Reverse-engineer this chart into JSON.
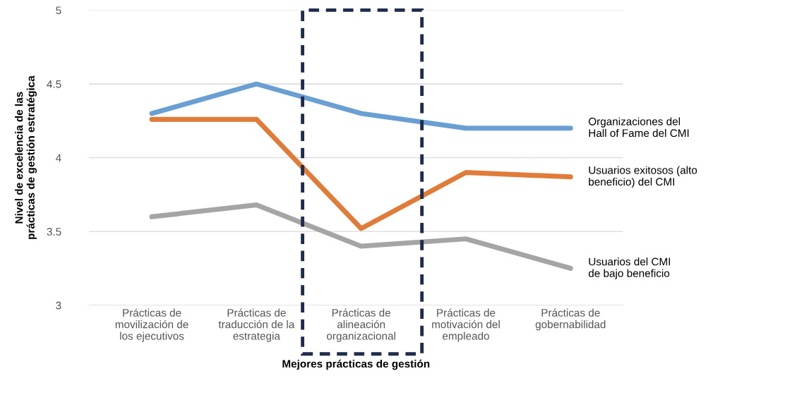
{
  "chart_data": {
    "type": "line",
    "categories": [
      "Prácticas de\nmovilización de\nlos ejecutivos",
      "Prácticas de\ntraducción de la\nestrategia",
      "Prácticas de\nalineación\norganizacional",
      "Prácticas de\nmotivación del\nempleado",
      "Prácticas de\ngobernabilidad"
    ],
    "series": [
      {
        "name": "Organizaciones del\nHall of Fame del CMI",
        "color": "#6a9fd4",
        "values": [
          4.3,
          4.5,
          4.3,
          4.2,
          4.2
        ]
      },
      {
        "name": "Usuarios exitosos (alto\nbeneficio) del CMI",
        "color": "#e07b39",
        "values": [
          4.26,
          4.26,
          3.52,
          3.9,
          3.87
        ]
      },
      {
        "name": "Usuarios del CMI\nde bajo beneficio",
        "color": "#a5a5a5",
        "values": [
          3.6,
          3.68,
          3.4,
          3.45,
          3.25
        ]
      }
    ],
    "xlabel": "Mejores prácticas de gestión",
    "ylabel": "Nivel de excelencia de las\nprácticas de gestión estratégica",
    "ylim": [
      3,
      5
    ],
    "yticks": [
      3,
      3.5,
      4,
      4.5,
      5
    ],
    "grid": "y",
    "marker": "none",
    "line_style": "solid"
  }
}
